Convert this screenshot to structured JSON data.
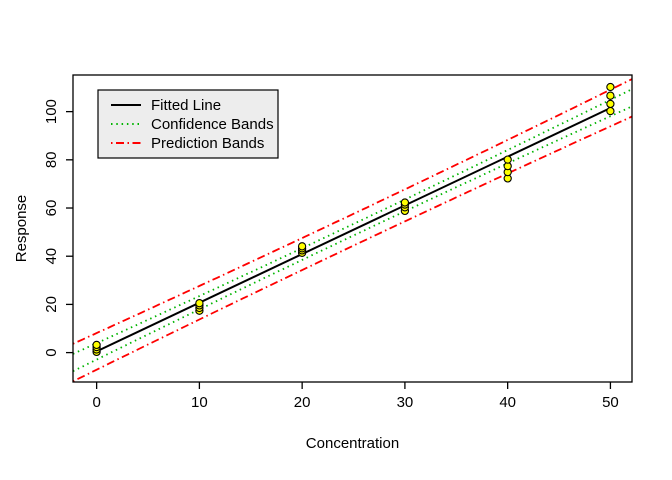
{
  "figure": {
    "background": "#FFFFFF"
  },
  "chart_data": {
    "type": "scatter",
    "title": "",
    "xlabel": "Concentration",
    "ylabel": "Response",
    "xlim": [
      -2.3,
      52.1
    ],
    "ylim": [
      -12.2,
      115.2
    ],
    "x_ticks": [
      0,
      10,
      20,
      30,
      40,
      50
    ],
    "y_ticks": [
      0,
      20,
      40,
      60,
      80,
      100
    ],
    "grid": false,
    "points": {
      "marker": "circle",
      "fill": "#FFFF00",
      "stroke": "#000000",
      "x": [
        0,
        0,
        0,
        0,
        10,
        10,
        10,
        10,
        20,
        20,
        20,
        20,
        30,
        30,
        30,
        30,
        40,
        40,
        40,
        40,
        50,
        50,
        50,
        50
      ],
      "y": [
        0.3,
        1.3,
        2.3,
        3.2,
        17.4,
        18.5,
        19.6,
        20.5,
        41.4,
        42.4,
        43.3,
        44.1,
        58.8,
        60.3,
        61.4,
        62.3,
        72.3,
        74.9,
        77.4,
        80.1,
        100.2,
        103.2,
        106.6,
        110.2
      ]
    },
    "fit": {
      "label": "Fitted Line",
      "slope": 2.02,
      "intercept": 0.5,
      "color": "#000000",
      "style": "solid",
      "x_range": [
        0,
        50
      ]
    },
    "confidence_bands": {
      "label": "Confidence Bands",
      "color": "#00B400",
      "style": "dotted",
      "halfwidth_center": 2.4,
      "halfwidth_edge": 3.4
    },
    "prediction_bands": {
      "label": "Prediction Bands",
      "color": "#FF0000",
      "style": "dotdash",
      "halfwidth_center": 6.6,
      "halfwidth_edge": 7.6
    },
    "legend": {
      "position": "topleft",
      "background": "#EDEDED",
      "border": "#000000",
      "entries": [
        {
          "label": "Fitted Line",
          "color": "#000000",
          "style": "solid"
        },
        {
          "label": "Confidence Bands",
          "color": "#00B400",
          "style": "dotted"
        },
        {
          "label": "Prediction Bands",
          "color": "#FF0000",
          "style": "dotdash"
        }
      ]
    }
  }
}
